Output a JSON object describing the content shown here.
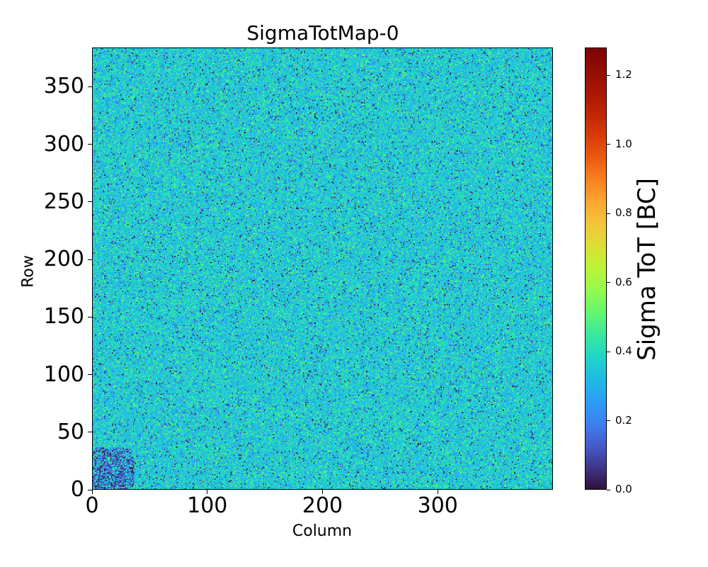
{
  "chart_data": {
    "type": "heatmap",
    "title": "SigmaTotMap-0",
    "xlabel": "Column",
    "ylabel": "Row",
    "xlim": [
      0,
      400
    ],
    "ylim": [
      0,
      384
    ],
    "x_ticks": [
      "0",
      "100",
      "200",
      "300"
    ],
    "y_ticks": [
      "0",
      "50",
      "100",
      "150",
      "200",
      "250",
      "300",
      "350"
    ],
    "x_tick_values": [
      0,
      100,
      200,
      300
    ],
    "y_tick_values": [
      0,
      50,
      100,
      150,
      200,
      250,
      300,
      350
    ],
    "colorbar": {
      "label": "Sigma ToT [BC]",
      "range": [
        0.0,
        1.28
      ],
      "ticks": [
        "0.0",
        "0.2",
        "0.4",
        "0.6",
        "0.8",
        "1.0",
        "1.2"
      ],
      "tick_values": [
        0.0,
        0.2,
        0.4,
        0.6,
        0.8,
        1.0,
        1.2
      ],
      "colormap": "turbo"
    },
    "grid": false,
    "distribution": {
      "typical_value_range": [
        0.2,
        0.5
      ],
      "mean": 0.37,
      "low_value_region": {
        "columns": [
          0,
          35
        ],
        "rows": [
          0,
          35
        ],
        "typical_value_range": [
          0.0,
          0.3
        ]
      }
    }
  }
}
